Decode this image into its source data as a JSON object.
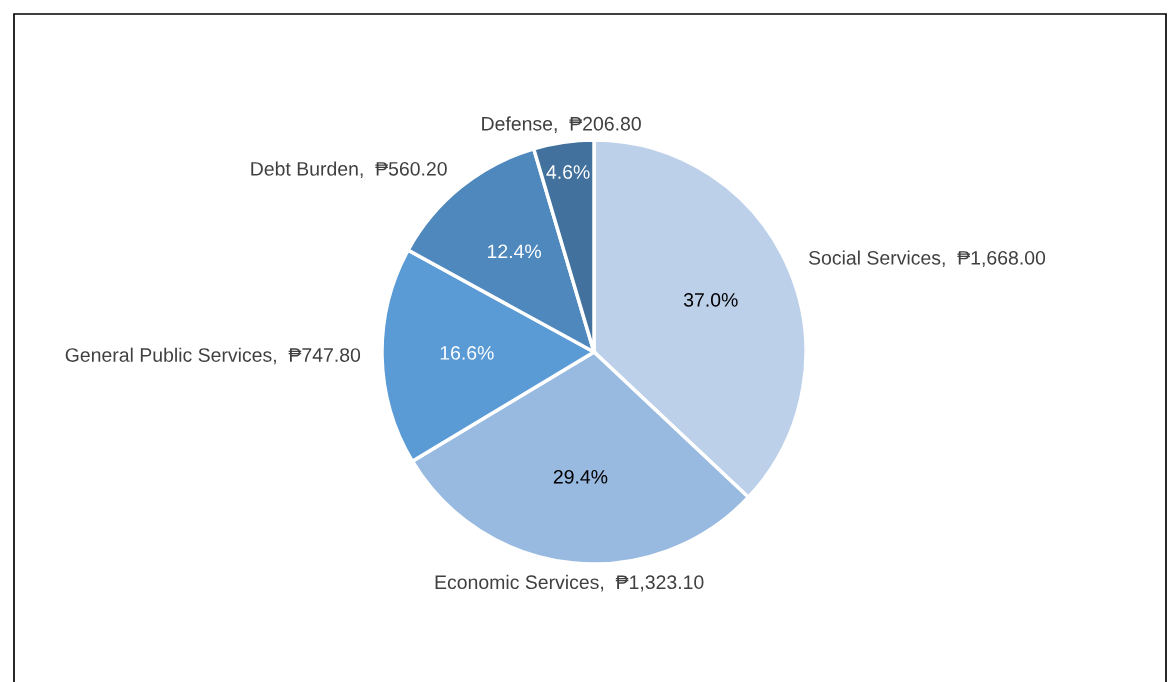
{
  "chart_data": {
    "type": "pie",
    "categories": [
      "Social Services",
      "Economic Services",
      "General Public Services",
      "Debt Burden",
      "Defense"
    ],
    "values": [
      1668.0,
      1323.1,
      747.8,
      560.2,
      206.8
    ],
    "value_labels": [
      "₱1,668.00",
      "₱1,323.10",
      "₱747.80",
      "₱560.20",
      "₱206.80"
    ],
    "colors": [
      "#bdd0ea",
      "#98b9e0",
      "#5b9bd5",
      "#4f88bd",
      "#41719c"
    ],
    "annotations": [
      "37.0%",
      "29.4%",
      "16.6%",
      "12.4%",
      "4.6%"
    ],
    "legend": false
  }
}
